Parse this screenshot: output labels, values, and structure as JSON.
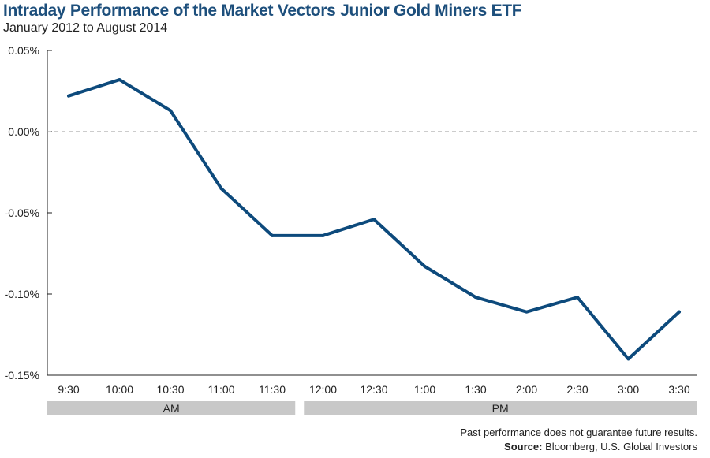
{
  "chart_data": {
    "type": "line",
    "title": "Intraday Performance of the Market Vectors Junior Gold Miners ETF",
    "subtitle": "January 2012 to August 2014",
    "categories": [
      "9:30",
      "10:00",
      "10:30",
      "11:00",
      "11:30",
      "12:00",
      "12:30",
      "1:00",
      "1:30",
      "2:00",
      "2:30",
      "3:00",
      "3:30"
    ],
    "series": [
      {
        "name": "Intraday Performance",
        "values": [
          0.022,
          0.032,
          0.013,
          -0.035,
          -0.064,
          -0.064,
          -0.054,
          -0.083,
          -0.102,
          -0.111,
          -0.102,
          -0.14,
          -0.111
        ]
      }
    ],
    "ylim": [
      -0.15,
      0.05
    ],
    "yticks": [
      0.05,
      0.0,
      -0.05,
      -0.1,
      -0.15
    ],
    "ytick_labels": [
      "0.05%",
      "0.00%",
      "-0.05%",
      "-0.10%",
      "-0.15%"
    ],
    "reference_line": 0.0,
    "session_bands": [
      {
        "label": "AM",
        "first_category": 0,
        "last_category": 4
      },
      {
        "label": "PM",
        "first_category": 5,
        "last_category": 12
      }
    ],
    "xlabel": "",
    "ylabel": ""
  },
  "colors": {
    "line": "#0d4a7c",
    "title": "#1d4f7c",
    "band": "#c8c8c8",
    "axis": "#222222",
    "zero_line": "#999999"
  },
  "footer": {
    "disclaimer": "Past performance does not guarantee future results.",
    "source_label": "Source:",
    "source_text": "Bloomberg, U.S. Global Investors"
  }
}
